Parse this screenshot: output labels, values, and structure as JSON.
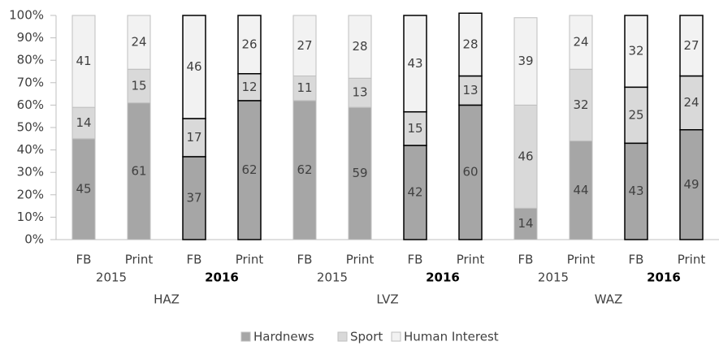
{
  "chart_data": {
    "type": "stacked_bar",
    "categories": [
      "FB",
      "Print",
      "FB",
      "Print",
      "FB",
      "Print",
      "FB",
      "Print",
      "FB",
      "Print",
      "FB",
      "Print"
    ],
    "years": [
      "2015",
      "2016",
      "2015",
      "2016",
      "2015",
      "2016"
    ],
    "outlets": [
      "HAZ",
      "LVZ",
      "WAZ"
    ],
    "series": [
      {
        "name": "Hardnews",
        "color": "#a6a6a6",
        "values": [
          45,
          61,
          37,
          62,
          62,
          59,
          42,
          60,
          14,
          44,
          43,
          49
        ]
      },
      {
        "name": "Sport",
        "color": "#d9d9d9",
        "values": [
          14,
          15,
          17,
          12,
          11,
          13,
          15,
          13,
          46,
          32,
          25,
          24
        ]
      },
      {
        "name": "Human Interest",
        "color": "#f2f2f2",
        "values": [
          41,
          24,
          46,
          26,
          27,
          28,
          43,
          28,
          39,
          24,
          32,
          27
        ]
      }
    ],
    "ylim": [
      0,
      100
    ],
    "yticks": [
      {
        "value": 0,
        "label": "0%"
      },
      {
        "value": 10,
        "label": "10%"
      },
      {
        "value": 20,
        "label": "20%"
      },
      {
        "value": 30,
        "label": "30%"
      },
      {
        "value": 40,
        "label": "40%"
      },
      {
        "value": 50,
        "label": "50%"
      },
      {
        "value": 60,
        "label": "60%"
      },
      {
        "value": 70,
        "label": "70%"
      },
      {
        "value": 80,
        "label": "80%"
      },
      {
        "value": 90,
        "label": "90%"
      },
      {
        "value": 100,
        "label": "100%"
      }
    ],
    "legend": "bottom"
  }
}
